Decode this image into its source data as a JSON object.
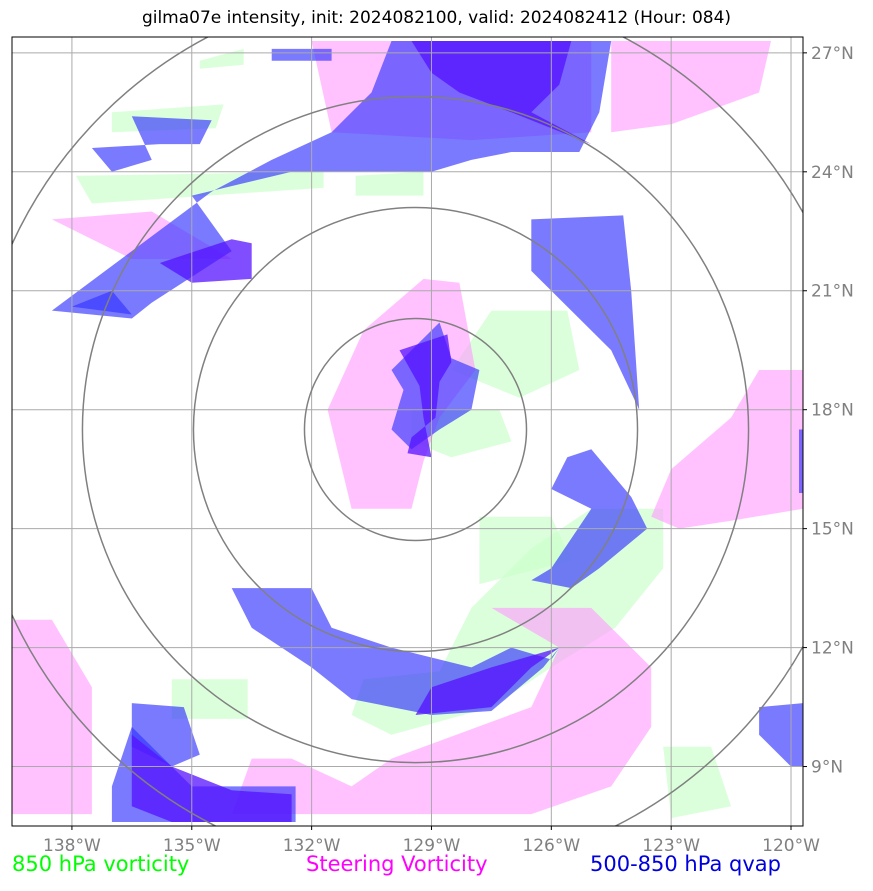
{
  "chart_data": {
    "type": "map",
    "title": "gilma07e intensity, init: 2024082100, valid: 2024082412 (Hour: 084)",
    "lon_ticks": [
      -138,
      -135,
      -132,
      -129,
      -126,
      -123,
      -120
    ],
    "lon_labels": [
      "138°W",
      "135°W",
      "132°W",
      "129°W",
      "126°W",
      "123°W",
      "120°W"
    ],
    "lat_ticks": [
      27,
      24,
      21,
      18,
      15,
      12,
      9
    ],
    "lat_labels": [
      "27°N",
      "24°N",
      "21°N",
      "18°N",
      "15°N",
      "12°N",
      "9°N"
    ],
    "lon_range": [
      -139.5,
      -119.7
    ],
    "lat_range": [
      7.5,
      27.4
    ],
    "center": {
      "lon": -129.4,
      "lat": 17.5
    },
    "range_rings_deg": [
      2.8,
      5.6,
      8.4,
      11.2
    ],
    "grid": true,
    "colors": {
      "vort850": "#ccffcc",
      "steering": "#ff99ff",
      "qvap": "#3333ff",
      "qvap_strong": "#5511ff",
      "grid": "#aaaaaa",
      "ring": "#808080",
      "tick_label": "#808080"
    },
    "legend": [
      {
        "label": "850 hPa vorticity",
        "color": "#00ff00"
      },
      {
        "label": "Steering Vorticity",
        "color": "#ff00ff"
      },
      {
        "label": "500-850 hPa qvap",
        "color": "#0000dd"
      }
    ],
    "fields": {
      "vort850": [
        [
          [
            -134.8,
            26.8
          ],
          [
            -133.7,
            27.1
          ],
          [
            -133.7,
            26.7
          ],
          [
            -134.8,
            26.6
          ]
        ],
        [
          [
            -137.0,
            25.5
          ],
          [
            -134.2,
            25.7
          ],
          [
            -134.4,
            25.1
          ],
          [
            -137.0,
            25.0
          ]
        ],
        [
          [
            -137.9,
            23.9
          ],
          [
            -131.7,
            24.0
          ],
          [
            -131.7,
            23.6
          ],
          [
            -137.5,
            23.2
          ]
        ],
        [
          [
            -130.9,
            23.9
          ],
          [
            -129.2,
            24.0
          ],
          [
            -129.2,
            23.4
          ],
          [
            -130.9,
            23.4
          ]
        ],
        [
          [
            -127.5,
            20.5
          ],
          [
            -125.6,
            20.5
          ],
          [
            -125.3,
            19.0
          ],
          [
            -126.8,
            18.3
          ],
          [
            -128.5,
            19.0
          ]
        ],
        [
          [
            -129.5,
            18.0
          ],
          [
            -127.3,
            18.0
          ],
          [
            -127.0,
            17.2
          ],
          [
            -128.5,
            16.8
          ],
          [
            -129.5,
            17.2
          ]
        ],
        [
          [
            -130.7,
            11.2
          ],
          [
            -128.8,
            11.4
          ],
          [
            -128.0,
            13.0
          ],
          [
            -126.5,
            14.5
          ],
          [
            -125.0,
            15.5
          ],
          [
            -123.2,
            15.5
          ],
          [
            -123.2,
            14.0
          ],
          [
            -124.4,
            12.5
          ],
          [
            -126.0,
            11.5
          ],
          [
            -127.5,
            10.5
          ],
          [
            -130.0,
            9.8
          ],
          [
            -131.0,
            10.3
          ]
        ],
        [
          [
            -127.8,
            15.3
          ],
          [
            -126.0,
            15.3
          ],
          [
            -125.5,
            14.2
          ],
          [
            -127.8,
            13.6
          ]
        ],
        [
          [
            -135.5,
            11.2
          ],
          [
            -133.6,
            11.2
          ],
          [
            -133.6,
            10.2
          ],
          [
            -135.5,
            10.2
          ]
        ],
        [
          [
            -123.2,
            9.5
          ],
          [
            -122.0,
            9.5
          ],
          [
            -121.5,
            8.0
          ],
          [
            -123.0,
            7.7
          ]
        ]
      ],
      "steering": [
        [
          [
            -132.0,
            27.3
          ],
          [
            -125.0,
            27.3
          ],
          [
            -125.0,
            25.0
          ],
          [
            -128.0,
            24.8
          ],
          [
            -131.5,
            25.0
          ]
        ],
        [
          [
            -124.5,
            27.3
          ],
          [
            -120.5,
            27.3
          ],
          [
            -120.8,
            26.0
          ],
          [
            -123.0,
            25.2
          ],
          [
            -124.5,
            25.0
          ]
        ],
        [
          [
            -138.5,
            22.8
          ],
          [
            -136.0,
            23.0
          ],
          [
            -134.0,
            21.8
          ],
          [
            -136.5,
            21.8
          ]
        ],
        [
          [
            -129.2,
            21.3
          ],
          [
            -128.3,
            21.2
          ],
          [
            -127.9,
            19.0
          ],
          [
            -128.8,
            17.8
          ],
          [
            -129.2,
            16.7
          ],
          [
            -129.5,
            15.5
          ],
          [
            -131.0,
            15.5
          ],
          [
            -131.6,
            18.0
          ],
          [
            -130.7,
            20.0
          ]
        ],
        [
          [
            -120.8,
            19.0
          ],
          [
            -119.7,
            19.0
          ],
          [
            -119.7,
            15.5
          ],
          [
            -121.5,
            15.2
          ],
          [
            -122.8,
            15.0
          ],
          [
            -123.5,
            15.3
          ],
          [
            -123.0,
            16.5
          ],
          [
            -121.5,
            17.8
          ]
        ],
        [
          [
            -139.5,
            12.7
          ],
          [
            -138.5,
            12.7
          ],
          [
            -137.5,
            11.0
          ],
          [
            -137.5,
            7.8
          ],
          [
            -139.5,
            7.8
          ]
        ],
        [
          [
            -133.5,
            9.2
          ],
          [
            -132.5,
            9.2
          ],
          [
            -131.0,
            8.5
          ],
          [
            -130.0,
            9.2
          ],
          [
            -126.5,
            10.5
          ],
          [
            -125.8,
            12.0
          ],
          [
            -127.5,
            13.0
          ],
          [
            -125.0,
            13.0
          ],
          [
            -123.5,
            11.5
          ],
          [
            -123.5,
            10.0
          ],
          [
            -124.5,
            8.5
          ],
          [
            -126.5,
            7.8
          ],
          [
            -134.0,
            7.8
          ]
        ]
      ],
      "qvap": [
        [
          [
            -133.0,
            27.1
          ],
          [
            -131.5,
            27.1
          ],
          [
            -131.5,
            26.8
          ],
          [
            -133.0,
            26.8
          ]
        ],
        [
          [
            -136.5,
            25.4
          ],
          [
            -134.5,
            25.3
          ],
          [
            -134.8,
            24.7
          ],
          [
            -135.8,
            24.7
          ],
          [
            -137.5,
            24.6
          ],
          [
            -137.0,
            24.0
          ],
          [
            -136.0,
            24.3
          ]
        ],
        [
          [
            -130.0,
            27.3
          ],
          [
            -124.5,
            27.3
          ],
          [
            -124.8,
            25.5
          ],
          [
            -125.3,
            24.5
          ],
          [
            -127.0,
            24.5
          ],
          [
            -128.0,
            24.3
          ],
          [
            -129.0,
            24.0
          ],
          [
            -132.5,
            24.0
          ],
          [
            -135.0,
            23.4
          ],
          [
            -134.0,
            22.0
          ],
          [
            -136.0,
            20.7
          ],
          [
            -136.5,
            20.3
          ],
          [
            -138.5,
            20.5
          ],
          [
            -136.5,
            22.0
          ],
          [
            -134.5,
            23.5
          ],
          [
            -133.0,
            24.3
          ],
          [
            -131.5,
            25.0
          ],
          [
            -131.0,
            25.5
          ],
          [
            -130.5,
            26.0
          ]
        ],
        [
          [
            -138.0,
            20.6
          ],
          [
            -136.5,
            20.4
          ],
          [
            -137.0,
            21.0
          ]
        ],
        [
          [
            -126.5,
            22.8
          ],
          [
            -124.2,
            22.9
          ],
          [
            -124.0,
            21.0
          ],
          [
            -123.8,
            18.0
          ],
          [
            -124.5,
            19.5
          ],
          [
            -125.5,
            20.5
          ],
          [
            -126.5,
            21.5
          ]
        ],
        [
          [
            -128.8,
            20.2
          ],
          [
            -128.5,
            19.3
          ],
          [
            -127.8,
            19.0
          ],
          [
            -128.0,
            18.0
          ],
          [
            -128.8,
            17.5
          ],
          [
            -129.5,
            17.0
          ],
          [
            -130.0,
            17.5
          ],
          [
            -129.7,
            18.5
          ],
          [
            -130.0,
            19.0
          ],
          [
            -129.5,
            19.5
          ]
        ],
        [
          [
            -125.6,
            16.8
          ],
          [
            -125.0,
            17.0
          ],
          [
            -124.0,
            15.8
          ],
          [
            -123.6,
            15.0
          ],
          [
            -124.8,
            14.0
          ],
          [
            -125.5,
            13.5
          ],
          [
            -126.5,
            13.7
          ],
          [
            -126.0,
            14.0
          ],
          [
            -125.0,
            15.5
          ],
          [
            -126.0,
            16.0
          ]
        ],
        [
          [
            -134.0,
            13.5
          ],
          [
            -132.0,
            13.5
          ],
          [
            -131.5,
            12.5
          ],
          [
            -130.0,
            12.0
          ],
          [
            -128.0,
            11.5
          ],
          [
            -127.0,
            12.0
          ],
          [
            -126.0,
            11.7
          ],
          [
            -125.8,
            12.0
          ],
          [
            -126.2,
            11.5
          ],
          [
            -127.5,
            10.4
          ],
          [
            -129.0,
            10.3
          ],
          [
            -131.0,
            10.7
          ],
          [
            -132.0,
            11.5
          ],
          [
            -133.5,
            12.5
          ]
        ],
        [
          [
            -120.8,
            10.5
          ],
          [
            -119.7,
            10.6
          ],
          [
            -119.7,
            9.0
          ],
          [
            -120.0,
            9.0
          ],
          [
            -120.8,
            9.8
          ]
        ],
        [
          [
            -119.8,
            17.5
          ],
          [
            -119.7,
            17.5
          ],
          [
            -119.7,
            15.9
          ],
          [
            -119.8,
            15.9
          ]
        ],
        [
          [
            -136.5,
            10.6
          ],
          [
            -135.2,
            10.5
          ],
          [
            -134.8,
            9.3
          ],
          [
            -135.5,
            9.0
          ],
          [
            -136.5,
            9.5
          ]
        ],
        [
          [
            -136.5,
            10.0
          ],
          [
            -135.0,
            8.5
          ],
          [
            -133.0,
            8.5
          ],
          [
            -132.4,
            8.5
          ],
          [
            -132.4,
            7.6
          ],
          [
            -136.0,
            7.6
          ],
          [
            -137.0,
            7.6
          ],
          [
            -137.0,
            8.5
          ]
        ]
      ],
      "qvap_strong": [
        [
          [
            -129.5,
            27.3
          ],
          [
            -125.5,
            27.3
          ],
          [
            -125.8,
            26.2
          ],
          [
            -126.5,
            25.5
          ],
          [
            -125.0,
            24.7
          ],
          [
            -127.0,
            25.5
          ],
          [
            -128.3,
            26.0
          ],
          [
            -129.0,
            26.5
          ]
        ],
        [
          [
            -134.0,
            22.3
          ],
          [
            -133.5,
            22.2
          ],
          [
            -133.5,
            21.3
          ],
          [
            -135.0,
            21.2
          ],
          [
            -135.8,
            21.7
          ]
        ],
        [
          [
            -128.6,
            19.9
          ],
          [
            -128.5,
            19.2
          ],
          [
            -128.8,
            18.7
          ],
          [
            -128.9,
            17.8
          ],
          [
            -129.5,
            17.3
          ],
          [
            -129.6,
            16.9
          ],
          [
            -129.0,
            16.8
          ],
          [
            -129.2,
            17.8
          ],
          [
            -129.3,
            18.6
          ],
          [
            -129.8,
            19.5
          ]
        ],
        [
          [
            -125.8,
            12.0
          ],
          [
            -126.5,
            11.5
          ],
          [
            -127.5,
            10.5
          ],
          [
            -129.4,
            10.3
          ],
          [
            -129.0,
            11.0
          ],
          [
            -127.5,
            11.5
          ]
        ],
        [
          [
            -136.5,
            9.8
          ],
          [
            -135.5,
            9.0
          ],
          [
            -134.0,
            8.4
          ],
          [
            -132.5,
            8.3
          ],
          [
            -132.5,
            7.6
          ],
          [
            -135.5,
            7.6
          ],
          [
            -136.5,
            8.0
          ]
        ]
      ]
    }
  }
}
